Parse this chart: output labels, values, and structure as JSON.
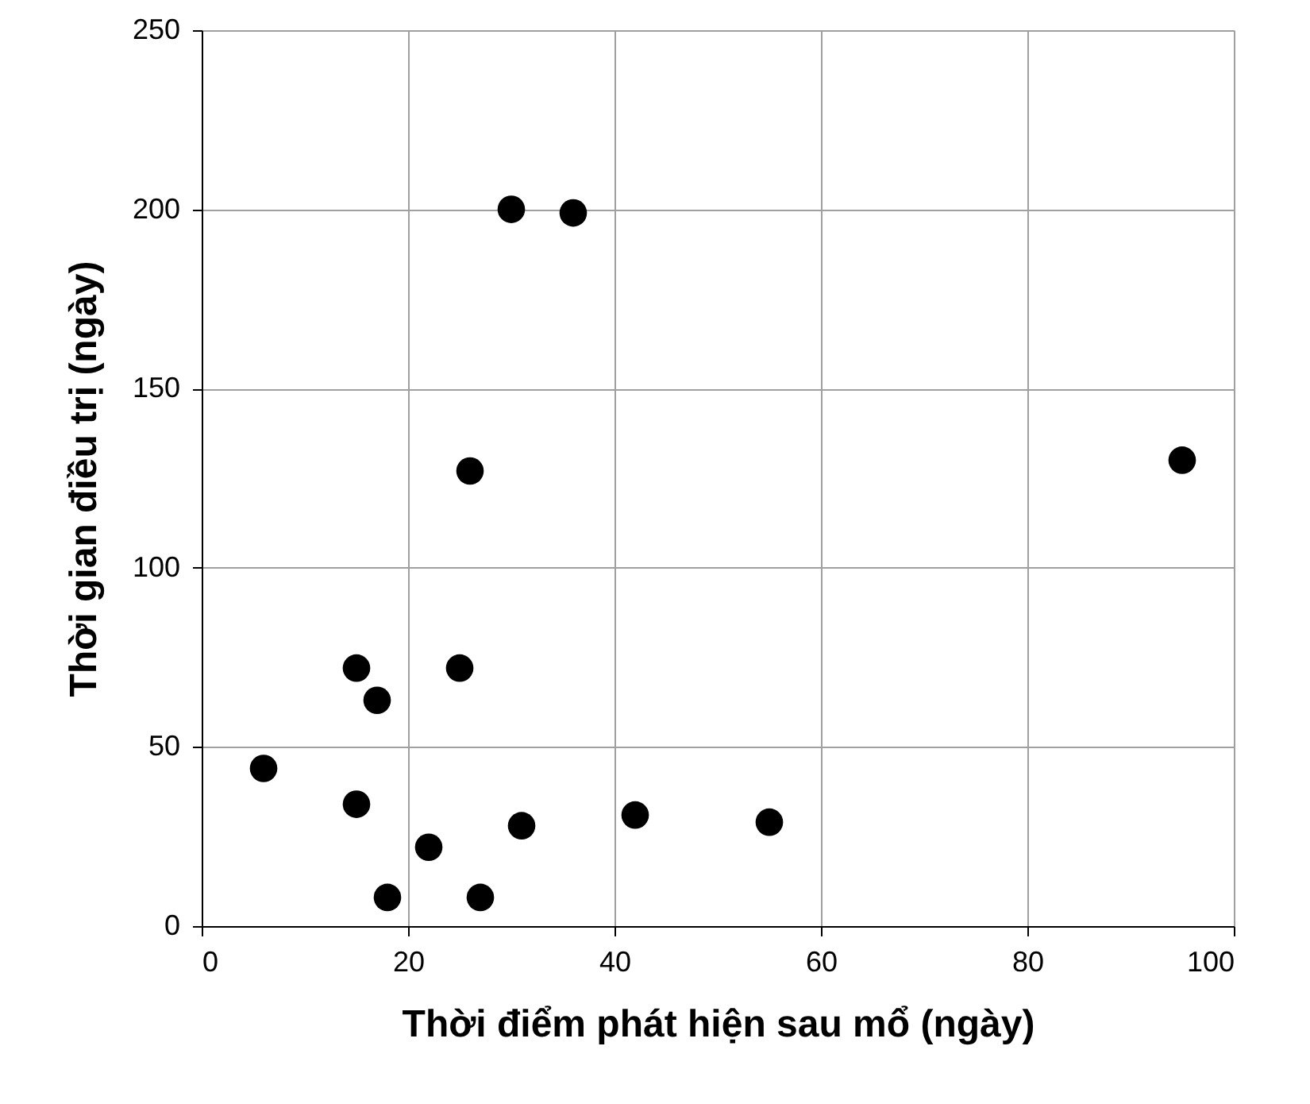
{
  "chart_data": {
    "type": "scatter",
    "xlabel": "Thời điểm phát hiện sau mổ (ngày)",
    "ylabel": "Thời gian điều trị (ngày)",
    "x": [
      6,
      15,
      17,
      25,
      26,
      30,
      36,
      15,
      22,
      18,
      27,
      31,
      42,
      55,
      95
    ],
    "series": [
      {
        "color": "#000000",
        "values": [
          44,
          72,
          63,
          72,
          127,
          200,
          199,
          34,
          22,
          8,
          8,
          28,
          31,
          29,
          130
        ]
      }
    ],
    "xlim": [
      0,
      100
    ],
    "xticks": [
      0,
      20,
      40,
      60,
      80,
      100
    ],
    "ylim": [
      0,
      250
    ],
    "yticks": [
      0,
      50,
      100,
      150,
      200,
      250
    ],
    "grid": true,
    "marker": "circle"
  }
}
